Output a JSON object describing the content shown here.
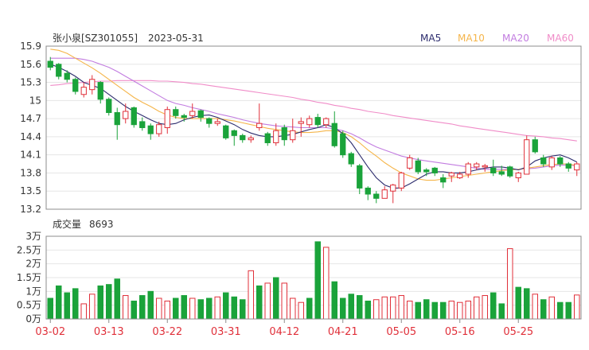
{
  "header": {
    "stock_title": "张小泉[SZ301055]",
    "date": "2023-05-31",
    "ma_legend": [
      {
        "label": "MA5",
        "color": "#2d2d6e"
      },
      {
        "label": "MA10",
        "color": "#f5b54a"
      },
      {
        "label": "MA20",
        "color": "#c27ce0"
      },
      {
        "label": "MA60",
        "color": "#f08cc8"
      }
    ]
  },
  "volume_header": {
    "label": "成交量",
    "value": "8693"
  },
  "colors": {
    "up": "#e0303a",
    "down": "#1aa33a",
    "date_label": "#e0303a"
  },
  "chart_data": [
    {
      "type": "candlestick",
      "ylim": [
        13.2,
        15.9
      ],
      "yticks": [
        "15.9",
        "15.6",
        "15.3",
        "15",
        "14.7",
        "14.4",
        "14.1",
        "13.8",
        "13.5",
        "13.2"
      ],
      "xticks": [
        {
          "index": 0,
          "label": "03-02"
        },
        {
          "index": 7,
          "label": "03-13"
        },
        {
          "index": 14,
          "label": "03-22"
        },
        {
          "index": 21,
          "label": "03-31"
        },
        {
          "index": 28,
          "label": "04-12"
        },
        {
          "index": 35,
          "label": "04-21"
        },
        {
          "index": 42,
          "label": "05-05"
        },
        {
          "index": 49,
          "label": "05-16"
        },
        {
          "index": 56,
          "label": "05-25"
        }
      ],
      "candles": [
        [
          15.65,
          15.55,
          15.72,
          15.5
        ],
        [
          15.6,
          15.4,
          15.62,
          15.35
        ],
        [
          15.45,
          15.35,
          15.5,
          15.3
        ],
        [
          15.35,
          15.15,
          15.38,
          15.1
        ],
        [
          15.1,
          15.22,
          15.3,
          15.05
        ],
        [
          15.18,
          15.35,
          15.42,
          15.1
        ],
        [
          15.3,
          15.02,
          15.32,
          14.95
        ],
        [
          15.02,
          14.8,
          15.05,
          14.75
        ],
        [
          14.8,
          14.6,
          14.88,
          14.35
        ],
        [
          14.7,
          14.82,
          14.95,
          14.62
        ],
        [
          14.88,
          14.6,
          14.9,
          14.55
        ],
        [
          14.65,
          14.55,
          14.72,
          14.5
        ],
        [
          14.58,
          14.45,
          14.62,
          14.35
        ],
        [
          14.45,
          14.6,
          14.65,
          14.4
        ],
        [
          14.55,
          14.85,
          14.9,
          14.45
        ],
        [
          14.85,
          14.75,
          14.9,
          14.7
        ],
        [
          14.75,
          14.72,
          14.78,
          14.65
        ],
        [
          14.75,
          14.82,
          14.95,
          14.7
        ],
        [
          14.83,
          14.72,
          14.85,
          14.65
        ],
        [
          14.7,
          14.62,
          14.72,
          14.55
        ],
        [
          14.62,
          14.65,
          14.7,
          14.58
        ],
        [
          14.58,
          14.38,
          14.6,
          14.35
        ],
        [
          14.5,
          14.42,
          14.52,
          14.25
        ],
        [
          14.42,
          14.35,
          14.45,
          14.3
        ],
        [
          14.35,
          14.38,
          14.42,
          14.3
        ],
        [
          14.55,
          14.62,
          14.95,
          14.5
        ],
        [
          14.45,
          14.3,
          14.48,
          14.25
        ],
        [
          14.3,
          14.5,
          14.62,
          14.25
        ],
        [
          14.55,
          14.35,
          14.6,
          14.25
        ],
        [
          14.35,
          14.5,
          14.7,
          14.3
        ],
        [
          14.62,
          14.65,
          14.72,
          14.4
        ],
        [
          14.6,
          14.7,
          14.75,
          14.55
        ],
        [
          14.72,
          14.6,
          14.78,
          14.55
        ],
        [
          14.6,
          14.7,
          14.72,
          14.55
        ],
        [
          14.62,
          14.25,
          14.82,
          14.22
        ],
        [
          14.45,
          14.1,
          14.5,
          14.05
        ],
        [
          14.12,
          13.95,
          14.15,
          13.9
        ],
        [
          13.92,
          13.55,
          13.95,
          13.45
        ],
        [
          13.55,
          13.45,
          13.58,
          13.35
        ],
        [
          13.45,
          13.38,
          13.5,
          13.3
        ],
        [
          13.38,
          13.52,
          13.58,
          13.38
        ],
        [
          13.5,
          13.6,
          13.62,
          13.3
        ],
        [
          13.55,
          13.8,
          13.82,
          13.5
        ],
        [
          13.88,
          14.05,
          14.1,
          13.85
        ],
        [
          14.0,
          13.82,
          14.05,
          13.78
        ],
        [
          13.85,
          13.82,
          13.88,
          13.75
        ],
        [
          13.88,
          13.8,
          13.9,
          13.75
        ],
        [
          13.72,
          13.65,
          13.78,
          13.55
        ],
        [
          13.75,
          13.8,
          13.82,
          13.65
        ],
        [
          13.72,
          13.78,
          13.82,
          13.7
        ],
        [
          13.78,
          13.95,
          13.98,
          13.72
        ],
        [
          13.9,
          13.95,
          13.98,
          13.85
        ],
        [
          13.9,
          13.92,
          13.95,
          13.82
        ],
        [
          13.88,
          13.8,
          14.02,
          13.75
        ],
        [
          13.82,
          13.78,
          13.92,
          13.75
        ],
        [
          13.9,
          13.75,
          13.92,
          13.72
        ],
        [
          13.72,
          13.8,
          13.82,
          13.65
        ],
        [
          13.78,
          14.35,
          14.42,
          13.78
        ],
        [
          14.35,
          14.15,
          14.4,
          14.12
        ],
        [
          14.05,
          13.95,
          14.1,
          13.9
        ],
        [
          13.9,
          14.05,
          14.08,
          13.85
        ],
        [
          14.05,
          13.95,
          14.08,
          13.9
        ],
        [
          13.95,
          13.88,
          13.98,
          13.82
        ],
        [
          13.85,
          13.95,
          13.98,
          13.75
        ]
      ],
      "ma5": [
        15.6,
        15.55,
        15.48,
        15.4,
        15.3,
        15.25,
        15.2,
        15.1,
        15.0,
        14.9,
        14.82,
        14.75,
        14.68,
        14.62,
        14.6,
        14.62,
        14.68,
        14.72,
        14.75,
        14.76,
        14.72,
        14.66,
        14.6,
        14.52,
        14.46,
        14.42,
        14.4,
        14.4,
        14.42,
        14.44,
        14.48,
        14.52,
        14.55,
        14.6,
        14.55,
        14.45,
        14.3,
        14.1,
        13.9,
        13.72,
        13.6,
        13.55,
        13.55,
        13.62,
        13.7,
        13.78,
        13.82,
        13.82,
        13.8,
        13.8,
        13.82,
        13.85,
        13.88,
        13.9,
        13.9,
        13.88,
        13.85,
        13.9,
        14.0,
        14.05,
        14.08,
        14.1,
        14.05,
        13.98
      ],
      "ma10": [
        15.85,
        15.83,
        15.78,
        15.7,
        15.62,
        15.54,
        15.45,
        15.35,
        15.25,
        15.15,
        15.05,
        14.97,
        14.9,
        14.82,
        14.76,
        14.72,
        14.7,
        14.7,
        14.7,
        14.7,
        14.7,
        14.68,
        14.66,
        14.63,
        14.6,
        14.57,
        14.54,
        14.52,
        14.5,
        14.48,
        14.47,
        14.47,
        14.48,
        14.5,
        14.5,
        14.47,
        14.4,
        14.3,
        14.18,
        14.08,
        13.97,
        13.88,
        13.8,
        13.75,
        13.7,
        13.68,
        13.68,
        13.7,
        13.72,
        13.74,
        13.76,
        13.78,
        13.8,
        13.82,
        13.84,
        13.85,
        13.86,
        13.88,
        13.9,
        13.92,
        13.94,
        13.95,
        13.95,
        13.92
      ],
      "ma20": [
        15.7,
        15.7,
        15.7,
        15.7,
        15.68,
        15.65,
        15.6,
        15.55,
        15.48,
        15.4,
        15.32,
        15.24,
        15.16,
        15.08,
        15.0,
        14.95,
        14.92,
        14.88,
        14.85,
        14.82,
        14.78,
        14.75,
        14.72,
        14.68,
        14.65,
        14.62,
        14.6,
        14.58,
        14.57,
        14.56,
        14.55,
        14.55,
        14.55,
        14.55,
        14.53,
        14.5,
        14.45,
        14.38,
        14.3,
        14.23,
        14.18,
        14.13,
        14.08,
        14.05,
        14.02,
        14.0,
        13.98,
        13.96,
        13.94,
        13.92,
        13.9,
        13.88,
        13.86,
        13.86,
        13.86,
        13.86,
        13.86,
        13.87,
        13.88,
        13.9,
        13.92,
        13.93,
        13.93,
        13.92
      ],
      "ma60": [
        15.25,
        15.26,
        15.28,
        15.29,
        15.3,
        15.31,
        15.32,
        15.32,
        15.33,
        15.33,
        15.33,
        15.33,
        15.33,
        15.32,
        15.32,
        15.31,
        15.3,
        15.28,
        15.27,
        15.25,
        15.23,
        15.21,
        15.19,
        15.17,
        15.15,
        15.13,
        15.11,
        15.09,
        15.07,
        15.05,
        15.02,
        15.0,
        14.97,
        14.95,
        14.92,
        14.9,
        14.87,
        14.85,
        14.82,
        14.8,
        14.78,
        14.75,
        14.73,
        14.71,
        14.69,
        14.67,
        14.65,
        14.63,
        14.61,
        14.58,
        14.56,
        14.54,
        14.52,
        14.5,
        14.48,
        14.46,
        14.44,
        14.42,
        14.41,
        14.4,
        14.38,
        14.37,
        14.35,
        14.33
      ]
    },
    {
      "type": "bar",
      "ylim": [
        0,
        30000
      ],
      "yticks": [
        "3万",
        "2.5万",
        "2万",
        "1.5万",
        "1万",
        "0.5万",
        "0万"
      ],
      "values": [
        7500,
        12000,
        9500,
        11000,
        5500,
        9000,
        12000,
        12500,
        14500,
        8500,
        6500,
        8500,
        10000,
        7500,
        6500,
        7500,
        8500,
        7500,
        7000,
        7500,
        8000,
        9500,
        8000,
        7000,
        17500,
        12000,
        13000,
        15000,
        13000,
        7500,
        6000,
        7500,
        28000,
        26000,
        13500,
        7500,
        9000,
        8500,
        6500,
        7000,
        8000,
        8000,
        8500,
        6500,
        6000,
        7000,
        6000,
        6000,
        6500,
        6000,
        6500,
        8000,
        8500,
        9500,
        5500,
        25500,
        11500,
        11000,
        9000,
        7000,
        8000,
        6000,
        6000,
        8693
      ],
      "up": [
        false,
        false,
        false,
        false,
        true,
        true,
        false,
        false,
        false,
        true,
        false,
        false,
        false,
        true,
        true,
        false,
        false,
        true,
        false,
        false,
        true,
        false,
        false,
        false,
        true,
        false,
        true,
        false,
        true,
        true,
        true,
        false,
        false,
        true,
        false,
        false,
        false,
        false,
        false,
        true,
        true,
        true,
        true,
        true,
        false,
        false,
        false,
        false,
        true,
        true,
        true,
        true,
        true,
        false,
        false,
        true,
        false,
        false,
        true,
        false,
        true,
        false,
        false,
        true
      ]
    }
  ]
}
